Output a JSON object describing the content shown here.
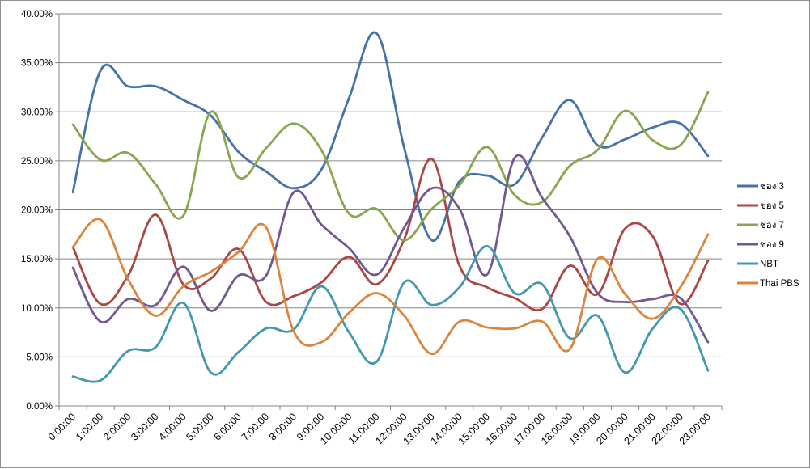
{
  "chart_data": {
    "type": "line",
    "smooth": true,
    "categories": [
      "0:00:00",
      "1:00:00",
      "2:00:00",
      "3:00:00",
      "4:00:00",
      "5:00:00",
      "6:00:00",
      "7:00:00",
      "8:00:00",
      "9:00:00",
      "10:00:00",
      "11:00:00",
      "12:00:00",
      "13:00:00",
      "14:00:00",
      "15:00:00",
      "16:00:00",
      "17:00:00",
      "18:00:00",
      "19:00:00",
      "20:00:00",
      "21:00:00",
      "22:00:00",
      "23:00:00"
    ],
    "yticks": [
      "0.00%",
      "5.00%",
      "10.00%",
      "15.00%",
      "20.00%",
      "25.00%",
      "30.00%",
      "35.00%",
      "40.00%"
    ],
    "ylim": [
      0,
      40
    ],
    "grid": true,
    "legend_position": "right",
    "title": "",
    "xlabel": "",
    "ylabel": "",
    "series": [
      {
        "name": "ช่อง 3",
        "color": "#4572a7",
        "values": [
          21.8,
          34.2,
          32.6,
          32.6,
          31.2,
          29.6,
          25.9,
          23.9,
          22.2,
          24.1,
          31.4,
          38.0,
          26.3,
          16.9,
          22.9,
          23.5,
          22.6,
          27.4,
          31.2,
          26.6,
          27.2,
          28.4,
          28.8,
          25.5
        ]
      },
      {
        "name": "ช่อง 5",
        "color": "#aa4643",
        "values": [
          16.2,
          10.4,
          13.3,
          19.5,
          12.4,
          13.0,
          16.0,
          10.6,
          11.2,
          12.6,
          15.2,
          12.4,
          17.0,
          25.2,
          14.3,
          12.1,
          11.0,
          9.9,
          14.3,
          11.4,
          18.1,
          17.3,
          10.4,
          14.8
        ]
      },
      {
        "name": "ช่อง 7",
        "color": "#89a54e",
        "values": [
          28.7,
          25.1,
          25.8,
          22.6,
          19.4,
          30.0,
          23.3,
          26.3,
          28.8,
          26.1,
          19.6,
          20.1,
          16.9,
          20.1,
          22.5,
          26.4,
          21.5,
          20.8,
          24.5,
          26.1,
          30.1,
          27.1,
          26.6,
          32.0
        ]
      },
      {
        "name": "ช่อง 9",
        "color": "#71588f",
        "values": [
          14.1,
          8.6,
          10.9,
          10.3,
          14.2,
          9.7,
          13.3,
          13.3,
          21.8,
          18.5,
          16.1,
          13.4,
          18.2,
          22.2,
          20.1,
          13.4,
          25.3,
          21.2,
          17.3,
          11.5,
          10.6,
          10.9,
          11.0,
          6.5
        ]
      },
      {
        "name": "NBT",
        "color": "#4198af",
        "values": [
          3.0,
          2.6,
          5.6,
          6.0,
          10.5,
          3.4,
          5.5,
          7.9,
          7.8,
          12.2,
          7.5,
          4.5,
          12.6,
          10.3,
          12.1,
          16.3,
          11.5,
          12.4,
          6.9,
          9.2,
          3.4,
          7.9,
          9.9,
          3.6
        ]
      },
      {
        "name": "Thai PBS",
        "color": "#db843d",
        "values": [
          16.2,
          19.0,
          12.9,
          9.2,
          12.2,
          13.7,
          15.7,
          18.2,
          7.6,
          6.5,
          9.5,
          11.5,
          9.2,
          5.3,
          8.6,
          8.0,
          7.9,
          8.6,
          5.8,
          15.0,
          11.4,
          8.9,
          12.1,
          17.5
        ]
      }
    ]
  }
}
